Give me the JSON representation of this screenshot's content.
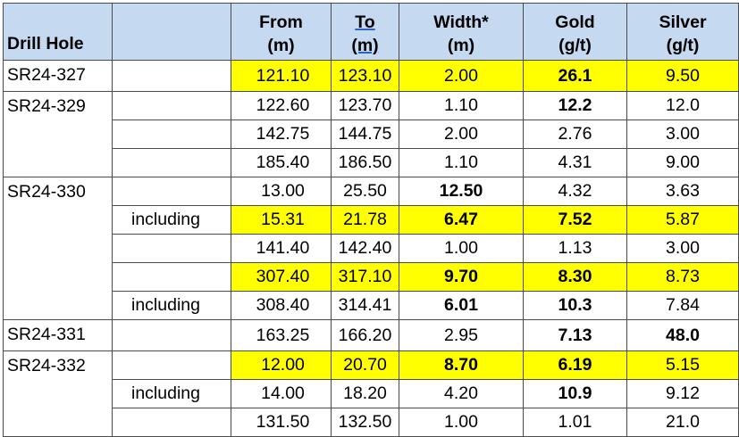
{
  "headers": {
    "hole": "Drill Hole",
    "note": "",
    "from": [
      "From",
      "(m)"
    ],
    "to": [
      "To",
      "(m)"
    ],
    "width": [
      "Width*",
      "(m)"
    ],
    "gold": [
      "Gold",
      "(g/t)"
    ],
    "silver": [
      "Silver",
      "(g/t)"
    ]
  },
  "colors": {
    "header_bg": "#c5d9f1",
    "highlight": "#ffff00",
    "border": "#4a4a4a"
  },
  "groups": [
    {
      "hole": "SR24-327",
      "rows": [
        {
          "note": "",
          "from": "121.10",
          "to": "123.10",
          "width": "2.00",
          "gold": "26.1",
          "silver": "9.50",
          "highlight": true,
          "bold": [
            "gold"
          ]
        }
      ]
    },
    {
      "hole": "SR24-329",
      "rows": [
        {
          "note": "",
          "from": "122.60",
          "to": "123.70",
          "width": "1.10",
          "gold": "12.2",
          "silver": "12.0",
          "highlight": false,
          "bold": [
            "gold"
          ]
        },
        {
          "note": "",
          "from": "142.75",
          "to": "144.75",
          "width": "2.00",
          "gold": "2.76",
          "silver": "3.00",
          "highlight": false,
          "bold": []
        },
        {
          "note": "",
          "from": "185.40",
          "to": "186.50",
          "width": "1.10",
          "gold": "4.31",
          "silver": "9.00",
          "highlight": false,
          "bold": []
        }
      ]
    },
    {
      "hole": "SR24-330",
      "rows": [
        {
          "note": "",
          "from": "13.00",
          "to": "25.50",
          "width": "12.50",
          "gold": "4.32",
          "silver": "3.63",
          "highlight": false,
          "bold": [
            "width"
          ]
        },
        {
          "note": "including",
          "from": "15.31",
          "to": "21.78",
          "width": "6.47",
          "gold": "7.52",
          "silver": "5.87",
          "highlight": true,
          "bold": [
            "width",
            "gold"
          ]
        },
        {
          "note": "",
          "from": "141.40",
          "to": "142.40",
          "width": "1.00",
          "gold": "1.13",
          "silver": "3.00",
          "highlight": false,
          "bold": []
        },
        {
          "note": "",
          "from": "307.40",
          "to": "317.10",
          "width": "9.70",
          "gold": "8.30",
          "silver": "8.73",
          "highlight": true,
          "bold": [
            "width",
            "gold"
          ]
        },
        {
          "note": "including",
          "from": "308.40",
          "to": "314.41",
          "width": "6.01",
          "gold": "10.3",
          "silver": "7.84",
          "highlight": false,
          "bold": [
            "width",
            "gold"
          ]
        }
      ]
    },
    {
      "hole": "SR24-331",
      "rows": [
        {
          "note": "",
          "from": "163.25",
          "to": "166.20",
          "width": "2.95",
          "gold": "7.13",
          "silver": "48.0",
          "highlight": false,
          "bold": [
            "gold",
            "silver"
          ]
        }
      ]
    },
    {
      "hole": "SR24-332",
      "rows": [
        {
          "note": "",
          "from": "12.00",
          "to": "20.70",
          "width": "8.70",
          "gold": "6.19",
          "silver": "5.15",
          "highlight": true,
          "bold": [
            "width",
            "gold"
          ]
        },
        {
          "note": "including",
          "from": "14.00",
          "to": "18.20",
          "width": "4.20",
          "gold": "10.9",
          "silver": "9.12",
          "highlight": false,
          "bold": [
            "gold"
          ]
        },
        {
          "note": "",
          "from": "131.50",
          "to": "132.50",
          "width": "1.00",
          "gold": "1.01",
          "silver": "21.0",
          "highlight": false,
          "bold": []
        }
      ]
    }
  ]
}
